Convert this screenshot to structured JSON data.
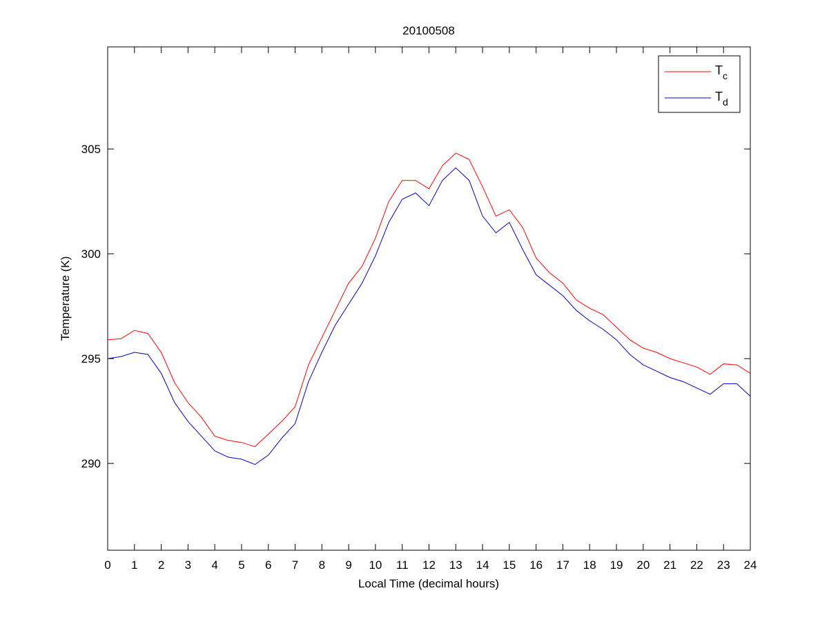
{
  "chart_data": {
    "type": "line",
    "title": "20100508",
    "xlabel": "Local Time (decimal hours)",
    "ylabel": "Temperature (K)",
    "xlim": [
      0,
      24
    ],
    "ylim": [
      285.86,
      309.87
    ],
    "xticks": [
      0,
      1,
      2,
      3,
      4,
      5,
      6,
      7,
      8,
      9,
      10,
      11,
      12,
      13,
      14,
      15,
      16,
      17,
      18,
      19,
      20,
      21,
      22,
      23,
      24
    ],
    "yticks": [
      290,
      295,
      300,
      305
    ],
    "grid": false,
    "legend_position": "top-right",
    "x": [
      0,
      0.5,
      1,
      1.5,
      2,
      2.5,
      3,
      3.5,
      4,
      4.5,
      5,
      5.5,
      6,
      6.5,
      7,
      7.5,
      8,
      8.5,
      9,
      9.5,
      10,
      10.5,
      11,
      11.5,
      12,
      12.5,
      13,
      13.5,
      14,
      14.5,
      15,
      15.5,
      16,
      16.5,
      17,
      17.5,
      18,
      18.5,
      19,
      19.5,
      20,
      20.5,
      21,
      21.5,
      22,
      22.5,
      23,
      23.5,
      24
    ],
    "series": [
      {
        "name": "T",
        "subscript": "c",
        "color": "#ff0000",
        "values": [
          295.9,
          295.95,
          296.35,
          296.2,
          295.3,
          293.85,
          292.9,
          292.2,
          291.3,
          291.1,
          291.0,
          290.8,
          291.4,
          292.0,
          292.7,
          294.7,
          296.0,
          297.3,
          298.6,
          299.4,
          300.75,
          302.5,
          303.5,
          303.5,
          303.1,
          304.2,
          304.8,
          304.5,
          303.2,
          301.8,
          302.1,
          301.25,
          299.8,
          299.1,
          298.6,
          297.8,
          297.4,
          297.1,
          296.5,
          295.9,
          295.5,
          295.3,
          295.0,
          294.8,
          294.6,
          294.25,
          294.75,
          294.7,
          294.3
        ]
      },
      {
        "name": "T",
        "subscript": "d",
        "color": "#0000cc",
        "values": [
          295.0,
          295.1,
          295.3,
          295.2,
          294.3,
          292.9,
          292.0,
          291.3,
          290.6,
          290.3,
          290.2,
          289.95,
          290.4,
          291.2,
          291.9,
          293.9,
          295.3,
          296.6,
          297.6,
          298.6,
          299.9,
          301.5,
          302.6,
          302.9,
          302.3,
          303.5,
          304.1,
          303.5,
          301.8,
          301.0,
          301.5,
          300.2,
          299.0,
          298.5,
          298.0,
          297.3,
          296.8,
          296.4,
          295.9,
          295.2,
          294.7,
          294.4,
          294.1,
          293.9,
          293.6,
          293.3,
          293.8,
          293.8,
          293.2
        ]
      }
    ]
  }
}
